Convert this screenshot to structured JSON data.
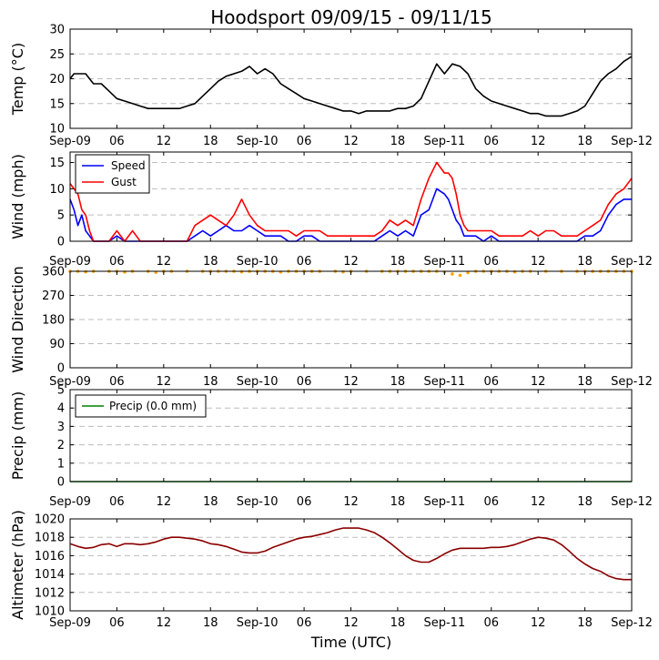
{
  "title": "Hoodsport 09/09/15 - 09/11/15",
  "xlabel": "Time (UTC)",
  "xticks": [
    "Sep-09",
    "06",
    "12",
    "18",
    "Sep-10",
    "06",
    "12",
    "18",
    "Sep-11",
    "06",
    "12",
    "18",
    "Sep-12"
  ],
  "colors": {
    "temp": "#000000",
    "speed": "#0000ff",
    "gust": "#ff0000",
    "dir": "#ffa500",
    "precip": "#008000",
    "alt": "#8b0000"
  },
  "chart_data": [
    {
      "type": "line",
      "id": "temp",
      "ylabel": "Temp (°C)",
      "ylim": [
        10,
        30
      ],
      "yticks": [
        "10",
        "15",
        "20",
        "25",
        "30"
      ],
      "x_hours": [
        0,
        0.5,
        1,
        2,
        3,
        4,
        5,
        6,
        7,
        8,
        9,
        10,
        11,
        12,
        13,
        14,
        15,
        16,
        17,
        18,
        19,
        20,
        21,
        22,
        23,
        24,
        25,
        26,
        27,
        28,
        29,
        30,
        31,
        32,
        33,
        34,
        35,
        36,
        37,
        38,
        39,
        40,
        41,
        42,
        43,
        44,
        45,
        46,
        47,
        48,
        49,
        50,
        51,
        52,
        53,
        54,
        55,
        56,
        57,
        58,
        59,
        60,
        61,
        62,
        63,
        64,
        65,
        66,
        67,
        68,
        69,
        70,
        71,
        72
      ],
      "series": [
        {
          "name": "Temp",
          "values": [
            20,
            21,
            21,
            21,
            19,
            19,
            17.5,
            16,
            15.5,
            15,
            14.5,
            14,
            14,
            14,
            14,
            14,
            14.5,
            15,
            16.5,
            18,
            19.5,
            20.5,
            21,
            21.5,
            22.5,
            21,
            22,
            21,
            19,
            18,
            17,
            16,
            15.5,
            15,
            14.5,
            14,
            13.5,
            13.5,
            13,
            13.5,
            13.5,
            13.5,
            13.5,
            14,
            14,
            14.5,
            16,
            19.5,
            23,
            21,
            23,
            22.5,
            21,
            18,
            16.5,
            15.5,
            15,
            14.5,
            14,
            13.5,
            13,
            13,
            12.5,
            12.5,
            12.5,
            13,
            13.5,
            14.5,
            17,
            19.5,
            21,
            22,
            23.5,
            24.5
          ]
        }
      ]
    },
    {
      "type": "line",
      "id": "wind",
      "ylabel": "Wind (mph)",
      "ylim": [
        0,
        17
      ],
      "yticks": [
        "0",
        "5",
        "10",
        "15"
      ],
      "legend": [
        "Speed",
        "Gust"
      ],
      "x_hours": [
        0,
        0.5,
        1,
        1.5,
        2,
        2.5,
        3,
        4,
        5,
        6,
        7,
        8,
        9,
        10,
        11,
        12,
        13,
        14,
        15,
        16,
        17,
        18,
        19,
        20,
        21,
        22,
        23,
        24,
        25,
        26,
        27,
        28,
        29,
        30,
        31,
        32,
        33,
        34,
        35,
        36,
        37,
        38,
        39,
        40,
        41,
        42,
        43,
        44,
        45,
        46,
        47,
        48,
        48.5,
        49,
        49.5,
        50,
        50.5,
        51,
        52,
        53,
        54,
        55,
        56,
        57,
        58,
        59,
        60,
        61,
        62,
        63,
        64,
        65,
        66,
        67,
        68,
        69,
        70,
        71,
        72
      ],
      "series": [
        {
          "name": "Speed",
          "values": [
            8,
            6,
            3,
            5,
            2,
            1,
            0,
            0,
            0,
            1,
            0,
            0,
            0,
            0,
            0,
            0,
            0,
            0,
            0,
            1,
            2,
            1,
            2,
            3,
            2,
            2,
            3,
            2,
            1,
            1,
            1,
            0,
            0,
            1,
            1,
            0,
            0,
            0,
            0,
            0,
            0,
            0,
            0,
            1,
            2,
            1,
            2,
            1,
            5,
            6,
            10,
            9,
            8,
            6,
            4,
            3,
            1,
            1,
            1,
            0,
            1,
            0,
            0,
            0,
            0,
            0,
            0,
            0,
            0,
            0,
            0,
            0,
            1,
            1,
            2,
            5,
            7,
            8,
            8
          ]
        },
        {
          "name": "Gust",
          "values": [
            11,
            10,
            9,
            6,
            5,
            2,
            0,
            0,
            0,
            2,
            0,
            2,
            0,
            0,
            0,
            0,
            0,
            0,
            0,
            3,
            4,
            5,
            4,
            3,
            5,
            8,
            5,
            3,
            2,
            2,
            2,
            2,
            1,
            2,
            2,
            2,
            1,
            1,
            1,
            1,
            1,
            1,
            1,
            2,
            4,
            3,
            4,
            3,
            8,
            12,
            15,
            13,
            13,
            12,
            9,
            5,
            3,
            2,
            2,
            2,
            2,
            1,
            1,
            1,
            1,
            2,
            1,
            2,
            2,
            1,
            1,
            1,
            2,
            3,
            4,
            7,
            9,
            10,
            12
          ]
        }
      ]
    },
    {
      "type": "scatter",
      "id": "dir",
      "ylabel": "Wind Direction",
      "ylim": [
        0,
        360
      ],
      "yticks": [
        "0",
        "90",
        "180",
        "270",
        "360"
      ],
      "x_hours": [
        0,
        1,
        2,
        3,
        5,
        6,
        7,
        8,
        10,
        11,
        12,
        13,
        15,
        17,
        18,
        19,
        20,
        21,
        22,
        23,
        24,
        25,
        26,
        27,
        28,
        29,
        30,
        31,
        32,
        34,
        35,
        36,
        38,
        40,
        41,
        42,
        43,
        44,
        45,
        46,
        47,
        48,
        49,
        50,
        51,
        52,
        53,
        54,
        55,
        56,
        57,
        58,
        59,
        61,
        63,
        65,
        66,
        67,
        68,
        69,
        70,
        71,
        72
      ],
      "values": [
        360,
        360,
        358,
        360,
        360,
        360,
        357,
        360,
        360,
        356,
        360,
        360,
        360,
        360,
        360,
        360,
        360,
        360,
        358,
        360,
        360,
        360,
        360,
        357,
        360,
        360,
        360,
        360,
        360,
        360,
        358,
        360,
        360,
        360,
        360,
        360,
        360,
        360,
        360,
        360,
        360,
        357,
        350,
        345,
        355,
        360,
        360,
        360,
        360,
        360,
        358,
        360,
        360,
        360,
        360,
        360,
        360,
        360,
        360,
        360,
        360,
        360,
        360
      ]
    },
    {
      "type": "line",
      "id": "precip",
      "ylabel": "Precip (mm)",
      "ylim": [
        0,
        5
      ],
      "yticks": [
        "0",
        "1",
        "2",
        "3",
        "4",
        "5"
      ],
      "legend": [
        "Precip (0.0 mm)"
      ],
      "x_hours": [
        0,
        72
      ],
      "series": [
        {
          "name": "Precip (0.0 mm)",
          "values": [
            0,
            0
          ]
        }
      ]
    },
    {
      "type": "line",
      "id": "alt",
      "ylabel": "Altimeter (hPa)",
      "ylim": [
        1010,
        1020
      ],
      "yticks": [
        "1010",
        "1012",
        "1014",
        "1016",
        "1018",
        "1020"
      ],
      "x_hours": [
        0,
        1,
        2,
        3,
        4,
        5,
        6,
        7,
        8,
        9,
        10,
        11,
        12,
        13,
        14,
        15,
        16,
        17,
        18,
        19,
        20,
        21,
        22,
        23,
        24,
        25,
        26,
        27,
        28,
        29,
        30,
        31,
        32,
        33,
        34,
        35,
        36,
        37,
        38,
        39,
        40,
        41,
        42,
        43,
        44,
        45,
        46,
        47,
        48,
        49,
        50,
        51,
        52,
        53,
        54,
        55,
        56,
        57,
        58,
        59,
        60,
        61,
        62,
        63,
        64,
        65,
        66,
        67,
        68,
        69,
        70,
        71,
        72
      ],
      "series": [
        {
          "name": "Altimeter",
          "values": [
            1017.3,
            1017,
            1016.8,
            1016.9,
            1017.2,
            1017.3,
            1017,
            1017.3,
            1017.3,
            1017.2,
            1017.3,
            1017.5,
            1017.8,
            1018,
            1018,
            1017.9,
            1017.8,
            1017.6,
            1017.3,
            1017.2,
            1017,
            1016.7,
            1016.4,
            1016.3,
            1016.3,
            1016.5,
            1016.9,
            1017.2,
            1017.5,
            1017.8,
            1018,
            1018.1,
            1018.3,
            1018.5,
            1018.8,
            1019,
            1019,
            1019,
            1018.8,
            1018.5,
            1018,
            1017.4,
            1016.7,
            1016,
            1015.5,
            1015.3,
            1015.3,
            1015.7,
            1016.2,
            1016.6,
            1016.8,
            1016.8,
            1016.8,
            1016.8,
            1016.9,
            1016.9,
            1017,
            1017.2,
            1017.5,
            1017.8,
            1018,
            1017.9,
            1017.7,
            1017.2,
            1016.5,
            1015.7,
            1015.1,
            1014.6,
            1014.3,
            1013.8,
            1013.5,
            1013.4,
            1013.4
          ]
        }
      ]
    }
  ]
}
